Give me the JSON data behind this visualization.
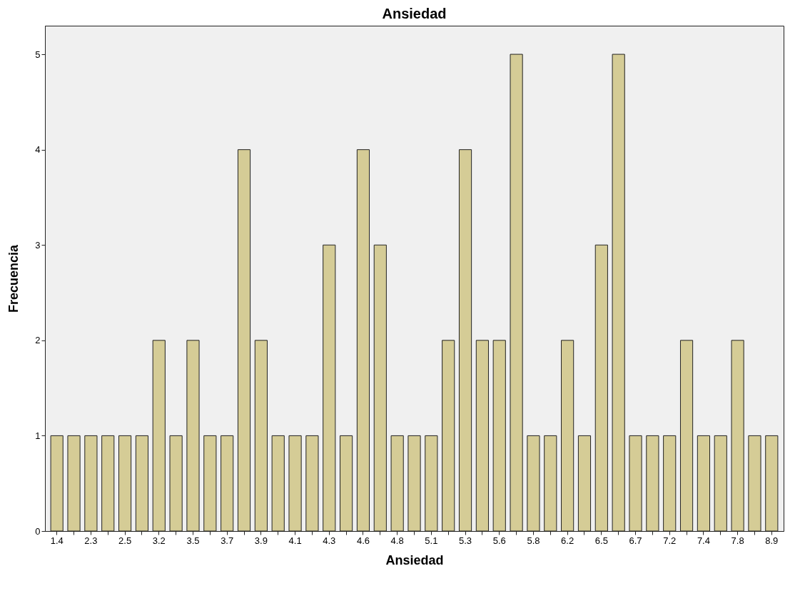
{
  "chart_data": {
    "type": "bar",
    "title": "Ansiedad",
    "xlabel": "Ansiedad",
    "ylabel": "Frecuencia",
    "categories": [
      "1.4",
      null,
      "2.3",
      null,
      "2.5",
      null,
      "3.2",
      null,
      "3.5",
      null,
      "3.7",
      null,
      "3.9",
      null,
      "4.1",
      null,
      "4.3",
      null,
      "4.6",
      null,
      "4.8",
      null,
      "5.1",
      null,
      "5.3",
      null,
      "5.6",
      null,
      "5.8",
      null,
      "6.2",
      null,
      "6.5",
      null,
      "6.7",
      null,
      "7.2",
      null,
      "7.4",
      null,
      "7.8",
      null,
      "8.9"
    ],
    "values": [
      1,
      1,
      1,
      1,
      1,
      1,
      2,
      1,
      2,
      1,
      1,
      4,
      2,
      1,
      1,
      1,
      3,
      1,
      4,
      3,
      1,
      1,
      1,
      2,
      4,
      2,
      2,
      5,
      1,
      1,
      2,
      1,
      3,
      5,
      1,
      1,
      1,
      2,
      1,
      1,
      2,
      1,
      1
    ],
    "color": "#d5cc96",
    "ylim": [
      0,
      5.3
    ],
    "yticks": [
      0,
      1,
      2,
      3,
      4,
      5
    ],
    "grid": false
  }
}
